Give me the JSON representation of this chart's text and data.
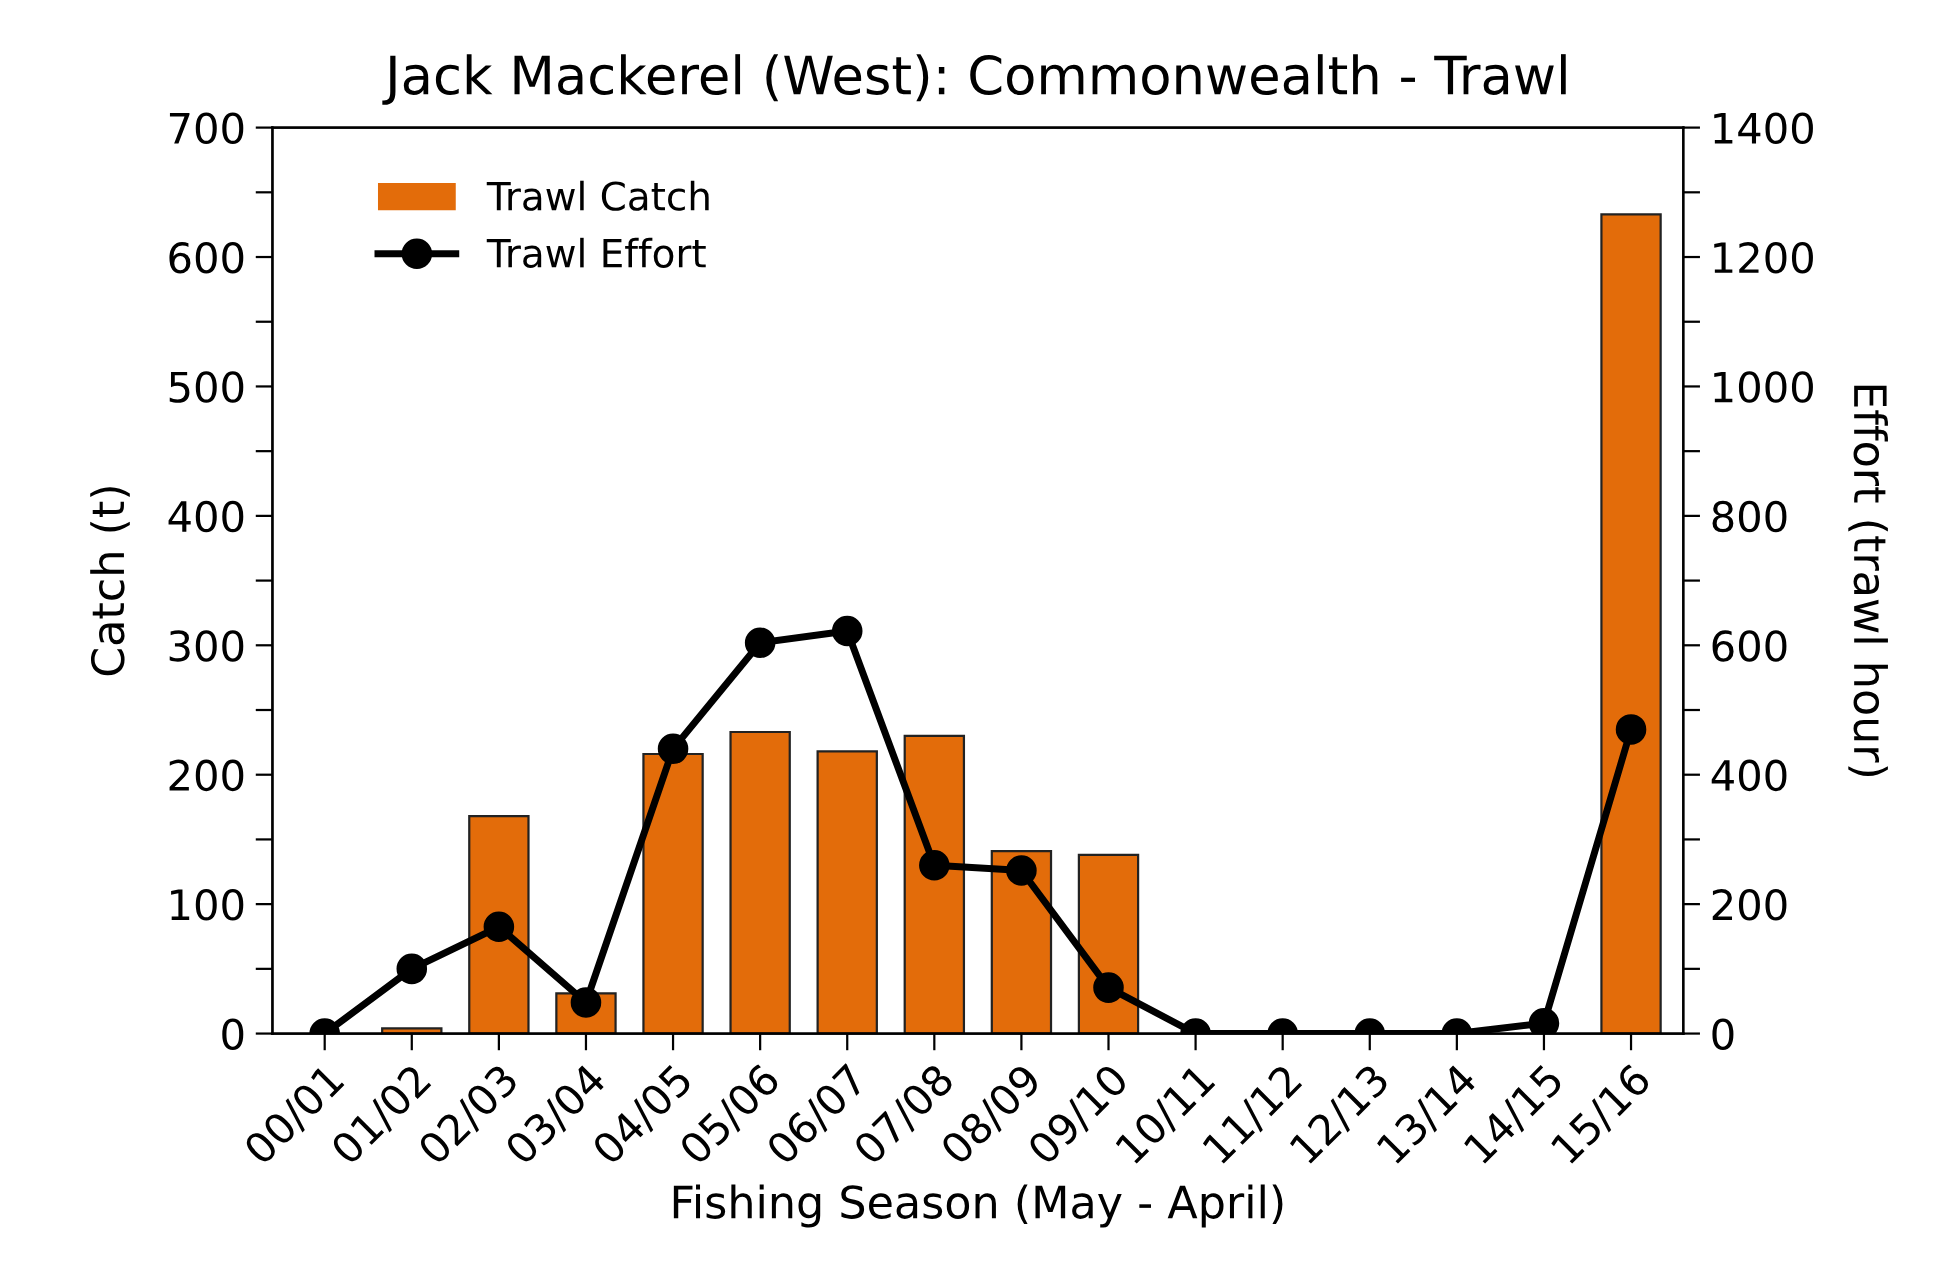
{
  "chart_data": {
    "type": "bar",
    "title": "Jack Mackerel (West): Commonwealth - Trawl",
    "xlabel": "Fishing Season (May - April)",
    "ylabel": "Catch (t)",
    "y2label": "Effort (trawl hour)",
    "categories": [
      "00/01",
      "01/02",
      "02/03",
      "03/04",
      "04/05",
      "05/06",
      "06/07",
      "07/08",
      "08/09",
      "09/10",
      "10/11",
      "11/12",
      "12/13",
      "13/14",
      "14/15",
      "15/16"
    ],
    "series": [
      {
        "name": "Trawl Catch",
        "color": "#e36c0a",
        "values": [
          0,
          4,
          168,
          31,
          216,
          233,
          218,
          230,
          141,
          138,
          0,
          0,
          0,
          0,
          0,
          633
        ]
      },
      {
        "name": "Trawl Effort",
        "type": "line",
        "axis": "y2",
        "color": "#000000",
        "marker": "circle",
        "values": [
          0,
          100,
          165,
          48,
          440,
          604,
          622,
          260,
          252,
          71,
          0,
          0,
          0,
          0,
          16,
          470
        ]
      }
    ],
    "ylim": [
      0,
      700
    ],
    "yticks": [
      0,
      {
        "value": 50,
        "label": null
      },
      100,
      {
        "value": 150,
        "label": null
      },
      200,
      {
        "value": 250,
        "label": null
      },
      300,
      {
        "value": 350,
        "label": null
      },
      400,
      {
        "value": 450,
        "label": null
      },
      500,
      {
        "value": 550,
        "label": null
      },
      600,
      {
        "value": 650,
        "label": null
      },
      700
    ],
    "y2lim": [
      0,
      1400
    ],
    "y2ticks": [
      0,
      {
        "value": 100,
        "label": null
      },
      200,
      {
        "value": 300,
        "label": null
      },
      400,
      {
        "value": 500,
        "label": null
      },
      600,
      {
        "value": 700,
        "label": null
      },
      800,
      {
        "value": 900,
        "label": null
      },
      1000,
      {
        "value": 1100,
        "label": null
      },
      1200,
      {
        "value": 1300,
        "label": null
      },
      1400
    ],
    "legend": "top left",
    "grid": false
  }
}
